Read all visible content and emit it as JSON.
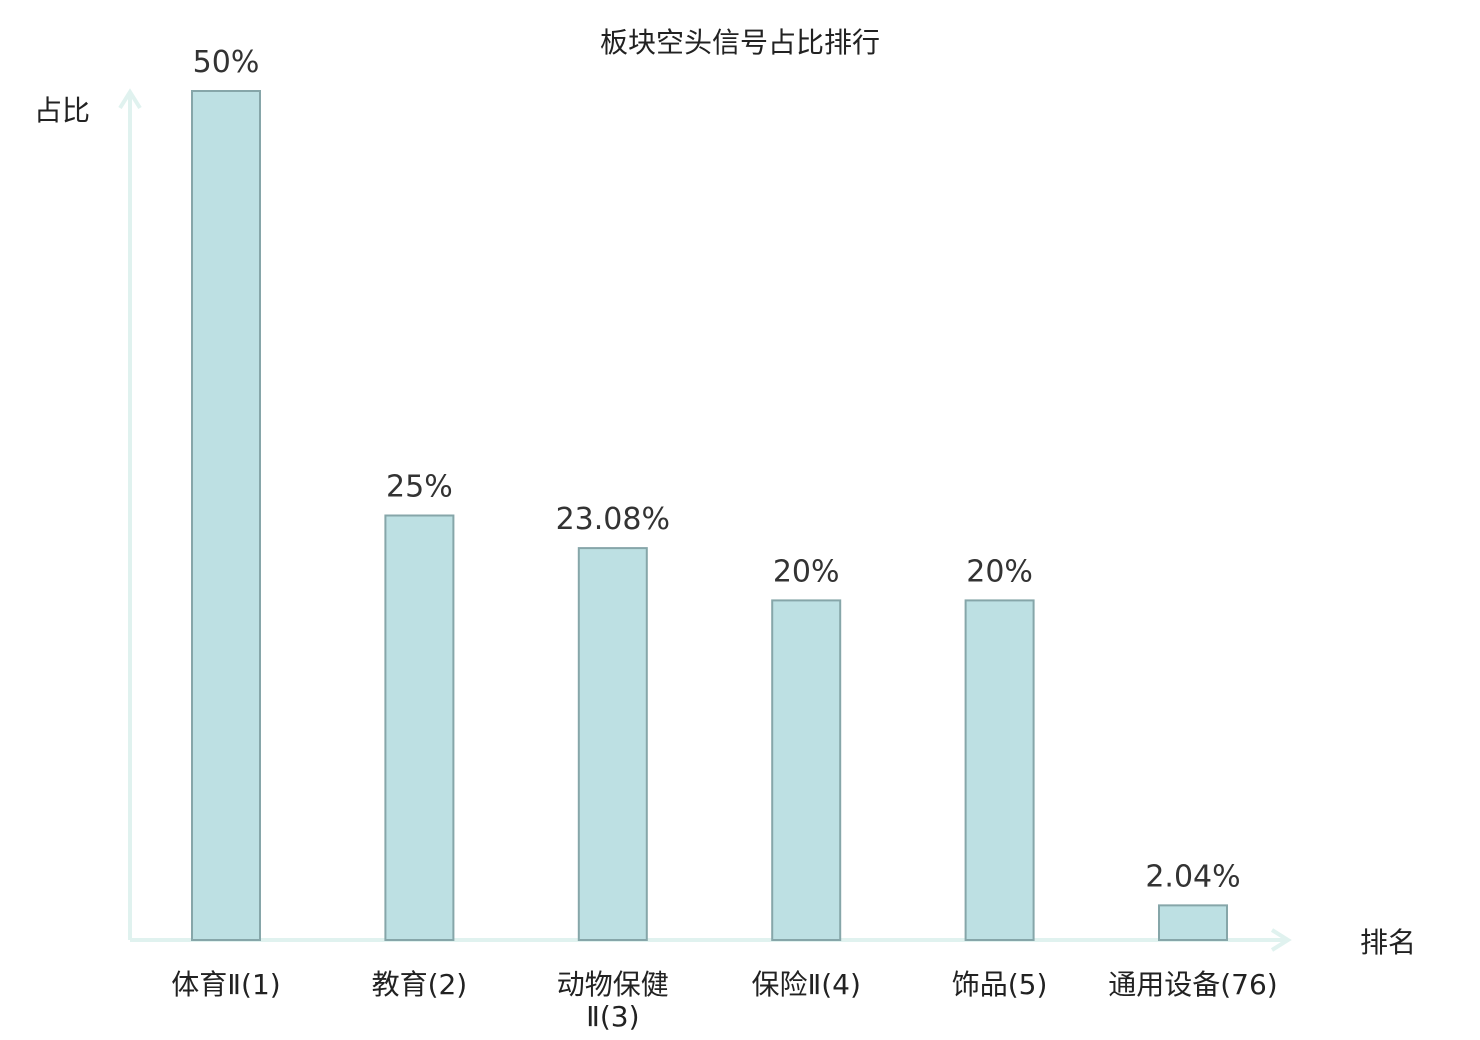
{
  "chart_data": {
    "type": "bar",
    "title": "板块空头信号占比排行",
    "ylabel": "占比",
    "xlabel": "排名",
    "categories": [
      "体育Ⅱ(1)",
      "教育(2)",
      "动物保健Ⅱ(3)",
      "保险Ⅱ(4)",
      "饰品(5)",
      "通用设备(76)"
    ],
    "category_lines": [
      [
        "体育Ⅱ(1)"
      ],
      [
        "教育(2)"
      ],
      [
        "动物保健",
        "Ⅱ(3)"
      ],
      [
        "保险Ⅱ(4)"
      ],
      [
        "饰品(5)"
      ],
      [
        "通用设备(76)"
      ]
    ],
    "values": [
      50,
      25,
      23.08,
      20,
      20,
      2.04
    ],
    "value_labels": [
      "50%",
      "25%",
      "23.08%",
      "20%",
      "20%",
      "2.04%"
    ],
    "highlight_index": 5,
    "ylim": [
      0,
      50
    ],
    "grid": false,
    "colors": {
      "bar_fill": "#bde0e3",
      "bar_stroke": "#86a6a9",
      "axis": "#e0f2ef",
      "highlight_label": "#e02020",
      "label": "#222222"
    }
  }
}
